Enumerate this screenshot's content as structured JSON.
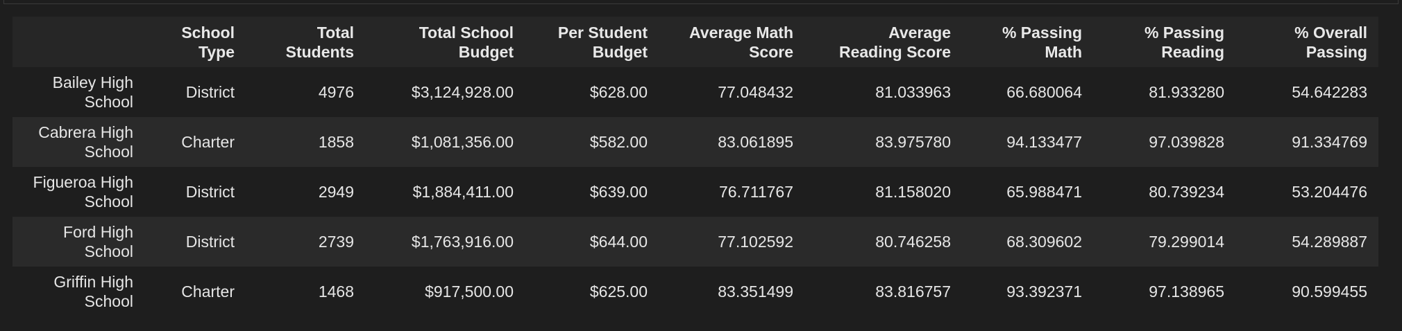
{
  "table": {
    "index_header": "",
    "columns": [
      "School\nType",
      "Total\nStudents",
      "Total School\nBudget",
      "Per Student\nBudget",
      "Average Math\nScore",
      "Average\nReading Score",
      "% Passing\nMath",
      "% Passing\nReading",
      "% Overall\nPassing"
    ],
    "rows": [
      {
        "index": "Bailey High\nSchool",
        "cells": [
          "District",
          "4976",
          "$3,124,928.00",
          "$628.00",
          "77.048432",
          "81.033963",
          "66.680064",
          "81.933280",
          "54.642283"
        ]
      },
      {
        "index": "Cabrera High\nSchool",
        "cells": [
          "Charter",
          "1858",
          "$1,081,356.00",
          "$582.00",
          "83.061895",
          "83.975780",
          "94.133477",
          "97.039828",
          "91.334769"
        ]
      },
      {
        "index": "Figueroa High\nSchool",
        "cells": [
          "District",
          "2949",
          "$1,884,411.00",
          "$639.00",
          "76.711767",
          "81.158020",
          "65.988471",
          "80.739234",
          "53.204476"
        ]
      },
      {
        "index": "Ford High\nSchool",
        "cells": [
          "District",
          "2739",
          "$1,763,916.00",
          "$644.00",
          "77.102592",
          "80.746258",
          "68.309602",
          "79.299014",
          "54.289887"
        ]
      },
      {
        "index": "Griffin High\nSchool",
        "cells": [
          "Charter",
          "1468",
          "$917,500.00",
          "$625.00",
          "83.351499",
          "83.816757",
          "93.392371",
          "97.138965",
          "90.599455"
        ]
      }
    ]
  }
}
